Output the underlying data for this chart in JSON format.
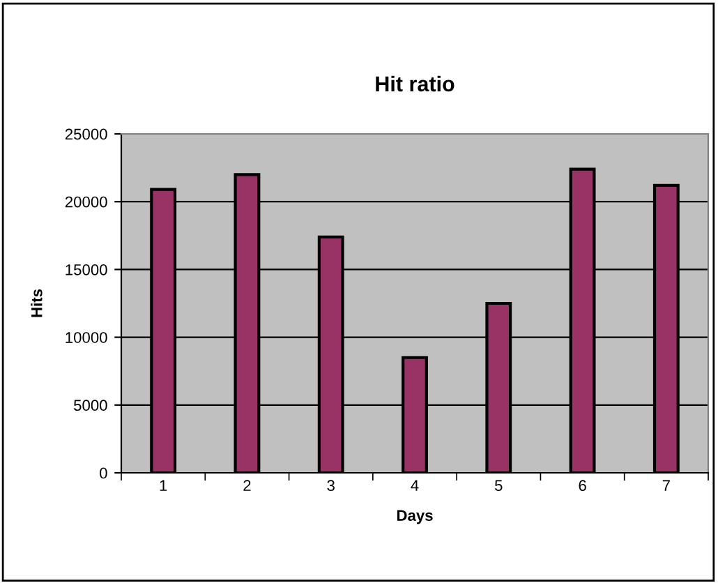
{
  "chart_data": {
    "type": "bar",
    "title": "Hit ratio",
    "xlabel": "Days",
    "ylabel": "Hits",
    "categories": [
      "1",
      "2",
      "3",
      "4",
      "5",
      "6",
      "7"
    ],
    "values": [
      20900,
      22000,
      17400,
      8500,
      12500,
      22400,
      21200
    ],
    "color": "#993366",
    "ylim": [
      0,
      25000
    ],
    "yticks": [
      0,
      5000,
      10000,
      15000,
      20000,
      25000
    ],
    "grid": "y",
    "legend": false
  }
}
